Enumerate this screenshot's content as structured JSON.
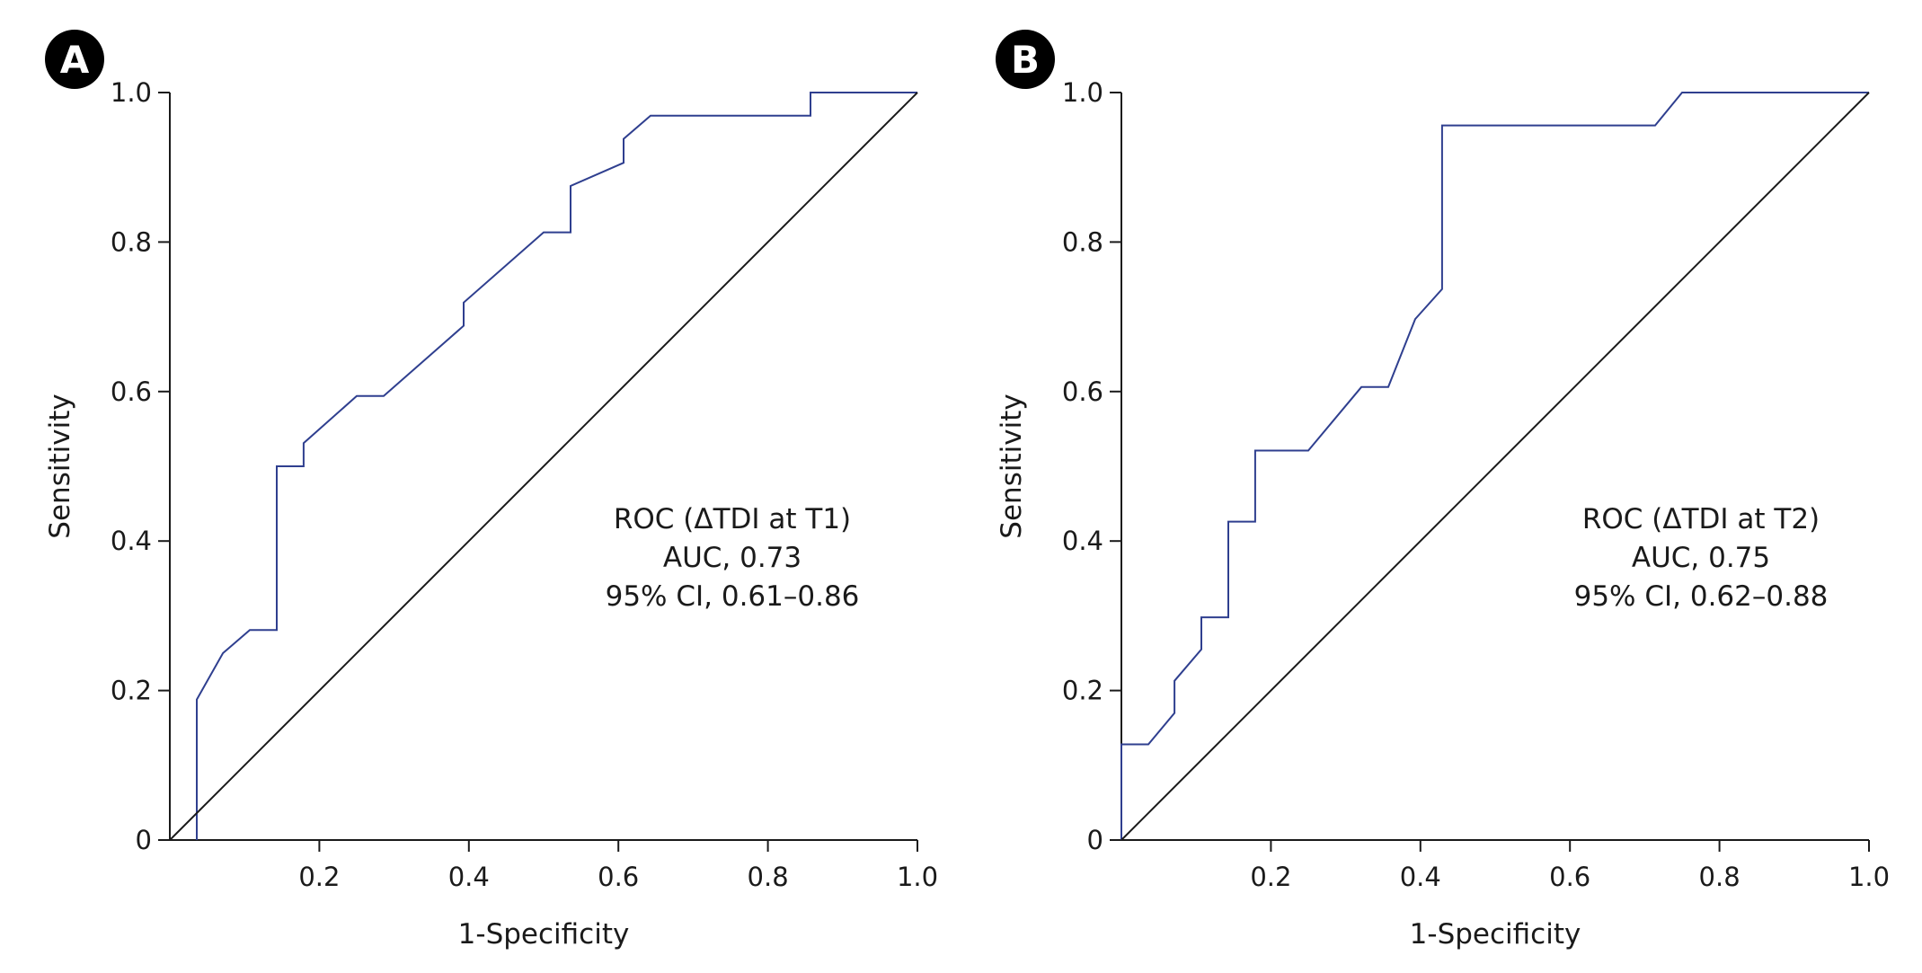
{
  "chart_data": [
    {
      "type": "line",
      "panel_label": "A",
      "xlabel": "1-Specificity",
      "ylabel": "Sensitivity",
      "xlim": [
        0,
        1
      ],
      "ylim": [
        0,
        1
      ],
      "x_ticks": [
        0.2,
        0.4,
        0.6,
        0.8,
        1.0
      ],
      "x_tick_labels": [
        "0.2",
        "0.4",
        "0.6",
        "0.8",
        "1.0"
      ],
      "y_ticks": [
        0,
        0.2,
        0.4,
        0.6,
        0.8,
        1.0
      ],
      "y_tick_labels": [
        "0",
        "0.2",
        "0.4",
        "0.6",
        "0.8",
        "1.0"
      ],
      "grid": false,
      "annotation": [
        "ROC (ΔTDI at T1)",
        "AUC, 0.73",
        "95% CI, 0.61–0.86"
      ],
      "colors": {
        "roc": "#2f3f8f",
        "reference": "#1a1a1a"
      },
      "series": [
        {
          "name": "ROC (ΔTDI at T1)",
          "x": [
            0.036,
            0.036,
            0.071,
            0.107,
            0.143,
            0.143,
            0.179,
            0.179,
            0.25,
            0.286,
            0.393,
            0.393,
            0.5,
            0.536,
            0.536,
            0.607,
            0.607,
            0.643,
            0.857,
            0.857,
            1.0
          ],
          "y": [
            0.0,
            0.188,
            0.25,
            0.281,
            0.281,
            0.5,
            0.5,
            0.531,
            0.594,
            0.594,
            0.688,
            0.719,
            0.813,
            0.813,
            0.875,
            0.906,
            0.938,
            0.969,
            0.969,
            1.0,
            1.0
          ]
        },
        {
          "name": "Reference",
          "x": [
            0,
            1
          ],
          "y": [
            0,
            1
          ]
        }
      ]
    },
    {
      "type": "line",
      "panel_label": "B",
      "xlabel": "1-Specificity",
      "ylabel": "Sensitivity",
      "xlim": [
        0,
        1
      ],
      "ylim": [
        0,
        1
      ],
      "x_ticks": [
        0.2,
        0.4,
        0.6,
        0.8,
        1.0
      ],
      "x_tick_labels": [
        "0.2",
        "0.4",
        "0.6",
        "0.8",
        "1.0"
      ],
      "y_ticks": [
        0,
        0.2,
        0.4,
        0.6,
        0.8,
        1.0
      ],
      "y_tick_labels": [
        "0",
        "0.2",
        "0.4",
        "0.6",
        "0.8",
        "1.0"
      ],
      "grid": false,
      "annotation": [
        "ROC (ΔTDI at T2)",
        "AUC, 0.75",
        "95% CI, 0.62–0.88"
      ],
      "colors": {
        "roc": "#2f3f8f",
        "reference": "#1a1a1a"
      },
      "series": [
        {
          "name": "ROC (ΔTDI at T2)",
          "x": [
            0.0,
            0.0,
            0.036,
            0.071,
            0.071,
            0.107,
            0.107,
            0.143,
            0.143,
            0.179,
            0.179,
            0.25,
            0.321,
            0.357,
            0.393,
            0.429,
            0.429,
            0.714,
            0.75,
            1.0
          ],
          "y": [
            0.0,
            0.128,
            0.128,
            0.17,
            0.213,
            0.255,
            0.298,
            0.298,
            0.426,
            0.426,
            0.521,
            0.521,
            0.606,
            0.606,
            0.697,
            0.737,
            0.956,
            0.956,
            1.0,
            1.0
          ]
        },
        {
          "name": "Reference",
          "x": [
            0,
            1
          ],
          "y": [
            0,
            1
          ]
        }
      ]
    }
  ]
}
